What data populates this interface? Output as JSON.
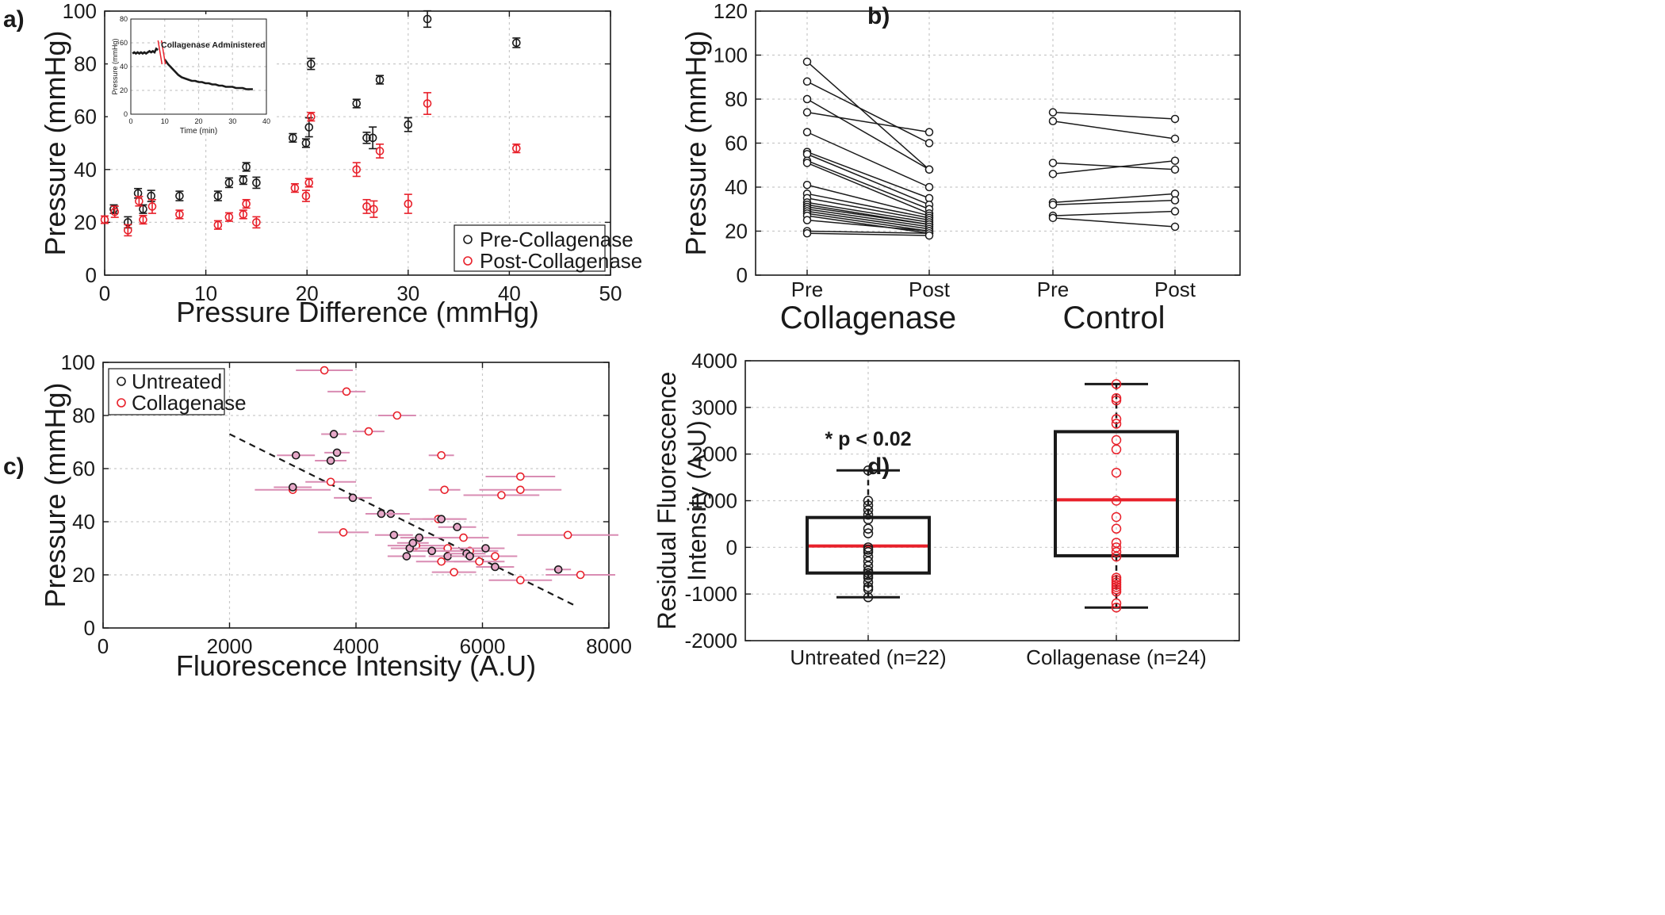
{
  "panels": {
    "a": {
      "label": "a)"
    },
    "b": {
      "label": "b)"
    },
    "c": {
      "label": "c)"
    },
    "d": {
      "label": "d)"
    }
  },
  "colors": {
    "black": "#1a1a1a",
    "red": "#e8202a",
    "pink": "#d98cb3",
    "box_median": "#e8202a"
  },
  "chart_data": [
    {
      "id": "a",
      "type": "scatter",
      "xlabel": "Pressure Difference (mmHg)",
      "ylabel": "Pressure (mmHg)",
      "xlim": [
        0,
        50
      ],
      "ylim": [
        0,
        100
      ],
      "xticks": [
        "0",
        "10",
        "20",
        "30",
        "40",
        "50"
      ],
      "yticks": [
        "0",
        "20",
        "40",
        "60",
        "80",
        "100"
      ],
      "legend": {
        "position": "bottom-right",
        "entries": [
          "Pre-Collagenase",
          "Post-Collagenase"
        ]
      },
      "series": [
        {
          "name": "Pre-Collagenase",
          "color": "#1a1a1a",
          "points": [
            [
              0.9,
              25,
              0.3,
              1
            ],
            [
              2.3,
              20,
              0.4,
              1.5
            ],
            [
              3.3,
              31,
              0.4,
              1.2
            ],
            [
              3.8,
              25,
              0.4,
              1
            ],
            [
              4.6,
              30,
              0.5,
              1.5
            ],
            [
              7.4,
              30,
              0.4,
              1.2
            ],
            [
              11.2,
              30,
              0.4,
              1.2
            ],
            [
              12.3,
              35,
              0.4,
              1.2
            ],
            [
              13.7,
              36,
              0.4,
              1
            ],
            [
              14,
              41,
              0.4,
              1
            ],
            [
              15,
              35,
              0.5,
              1.5
            ],
            [
              18.6,
              52,
              0.4,
              1
            ],
            [
              19.9,
              50,
              0.4,
              1
            ],
            [
              20.2,
              56,
              0.4,
              3
            ],
            [
              20.4,
              80,
              0.4,
              1.5
            ],
            [
              24.9,
              65,
              0.4,
              1
            ],
            [
              25.9,
              52,
              0.5,
              1.5
            ],
            [
              26.5,
              52,
              0.8,
              3.5
            ],
            [
              27.2,
              74,
              0.4,
              1
            ],
            [
              30,
              57,
              0.4,
              2
            ],
            [
              31.9,
              97,
              0.4,
              2.5
            ],
            [
              40.7,
              88,
              0.4,
              1.2
            ]
          ]
        },
        {
          "name": "Post-Collagenase",
          "color": "#e8202a",
          "points": [
            [
              0,
              21,
              0.2,
              0.8
            ],
            [
              1,
              24,
              0.4,
              1.5
            ],
            [
              2.3,
              17,
              0.4,
              1.5
            ],
            [
              3.4,
              28,
              0.4,
              1.2
            ],
            [
              3.8,
              21,
              0.4,
              1
            ],
            [
              4.7,
              26,
              0.4,
              2
            ],
            [
              7.4,
              23,
              0.4,
              1
            ],
            [
              11.2,
              19,
              0.4,
              1
            ],
            [
              12.3,
              22,
              0.4,
              1
            ],
            [
              13.7,
              23,
              0.4,
              1
            ],
            [
              14,
              27,
              0.4,
              1
            ],
            [
              15,
              20,
              0.4,
              1.5
            ],
            [
              18.8,
              33,
              0.4,
              1
            ],
            [
              19.9,
              30,
              0.4,
              1.5
            ],
            [
              20.2,
              35,
              0.4,
              1
            ],
            [
              20.4,
              60,
              0.4,
              1
            ],
            [
              24.9,
              40,
              0.4,
              2
            ],
            [
              25.9,
              26,
              0.5,
              2
            ],
            [
              26.6,
              25,
              0.6,
              2.5
            ],
            [
              27.2,
              47,
              0.4,
              2
            ],
            [
              30,
              27,
              0.5,
              3
            ],
            [
              31.9,
              65,
              0.5,
              3.5
            ],
            [
              40.7,
              48,
              0.4,
              1
            ]
          ]
        }
      ],
      "inset": {
        "title": "Collagenase Administered",
        "xlabel": "Time (min)",
        "ylabel": "Pressure (mmHg)",
        "xlim": [
          0,
          40
        ],
        "ylim": [
          0,
          80
        ],
        "xticks": [
          "0",
          "10",
          "20",
          "30",
          "40"
        ],
        "yticks": [
          "0",
          "20",
          "40",
          "60",
          "80"
        ],
        "curve": [
          [
            0.5,
            51
          ],
          [
            1,
            52
          ],
          [
            1.5,
            51
          ],
          [
            2,
            52
          ],
          [
            2.5,
            51
          ],
          [
            3,
            52
          ],
          [
            3.5,
            51
          ],
          [
            4,
            52
          ],
          [
            4.5,
            51
          ],
          [
            5,
            52
          ],
          [
            5.5,
            53
          ],
          [
            6,
            52
          ],
          [
            6.5,
            53
          ],
          [
            7,
            52
          ],
          [
            7.5,
            55
          ],
          [
            8,
            54
          ],
          [
            10,
            46
          ],
          [
            11,
            42
          ],
          [
            12,
            39
          ],
          [
            13,
            36
          ],
          [
            14,
            33
          ],
          [
            15,
            31
          ],
          [
            16,
            30
          ],
          [
            17,
            29
          ],
          [
            18,
            28
          ],
          [
            19,
            28
          ],
          [
            20,
            27
          ],
          [
            21,
            27
          ],
          [
            22,
            26
          ],
          [
            23,
            26
          ],
          [
            24,
            25
          ],
          [
            25,
            25
          ],
          [
            26,
            24
          ],
          [
            27,
            24
          ],
          [
            28,
            23
          ],
          [
            29,
            23
          ],
          [
            30,
            23
          ],
          [
            31,
            22
          ],
          [
            32,
            22
          ],
          [
            33,
            22
          ],
          [
            34,
            21
          ],
          [
            35,
            21
          ],
          [
            36,
            21
          ]
        ],
        "marker_times": [
          8.5,
          9.5
        ]
      }
    },
    {
      "id": "b",
      "type": "line",
      "ylabel": "Pressure (mmHg)",
      "ylim": [
        0,
        120
      ],
      "yticks": [
        "0",
        "20",
        "40",
        "60",
        "80",
        "100",
        "120"
      ],
      "xtick_labels": [
        "Pre",
        "Post",
        "Pre",
        "Post"
      ],
      "groups": [
        "Collagenase",
        "Control"
      ],
      "collagenase_pairs": [
        [
          97,
          48
        ],
        [
          88,
          60
        ],
        [
          80,
          48
        ],
        [
          74,
          65
        ],
        [
          65,
          40
        ],
        [
          56,
          35
        ],
        [
          55,
          32
        ],
        [
          52,
          30
        ],
        [
          51,
          28
        ],
        [
          41,
          27
        ],
        [
          37,
          26
        ],
        [
          35,
          25
        ],
        [
          33,
          24
        ],
        [
          32,
          23
        ],
        [
          31,
          23
        ],
        [
          30,
          22
        ],
        [
          29,
          21
        ],
        [
          28,
          20
        ],
        [
          27,
          19
        ],
        [
          25,
          20
        ],
        [
          20,
          19
        ],
        [
          19,
          18
        ]
      ],
      "control_pairs": [
        [
          74,
          71
        ],
        [
          70,
          62
        ],
        [
          51,
          48
        ],
        [
          46,
          52
        ],
        [
          33,
          37
        ],
        [
          32,
          34
        ],
        [
          27,
          29
        ],
        [
          26,
          22
        ]
      ]
    },
    {
      "id": "c",
      "type": "scatter",
      "xlabel": "Fluorescence Intensity (A.U)",
      "ylabel": "Pressure (mmHg)",
      "xlim": [
        0,
        8000
      ],
      "ylim": [
        0,
        100
      ],
      "xticks": [
        "0",
        "2000",
        "4000",
        "6000",
        "8000"
      ],
      "yticks": [
        "0",
        "20",
        "40",
        "60",
        "80",
        "100"
      ],
      "legend": {
        "position": "top-left",
        "entries": [
          "Untreated",
          "Collagenase"
        ]
      },
      "fit_line": [
        [
          2000,
          73
        ],
        [
          7500,
          8
        ]
      ],
      "series": [
        {
          "name": "Untreated",
          "color": "#1a1a1a",
          "points": [
            [
              3000,
              53,
              300,
              1
            ],
            [
              3050,
              65,
              300,
              1
            ],
            [
              3650,
              73,
              200,
              1
            ],
            [
              3600,
              63,
              250,
              1
            ],
            [
              3700,
              66,
              200,
              1
            ],
            [
              3950,
              49,
              300,
              1
            ],
            [
              4550,
              43,
              300,
              1
            ],
            [
              4400,
              43,
              250,
              1
            ],
            [
              4600,
              35,
              300,
              1
            ],
            [
              4800,
              27,
              300,
              1
            ],
            [
              4850,
              30,
              300,
              1
            ],
            [
              4900,
              32,
              250,
              1
            ],
            [
              5000,
              34,
              300,
              1
            ],
            [
              5200,
              29,
              300,
              1
            ],
            [
              5350,
              41,
              300,
              1
            ],
            [
              5450,
              27,
              300,
              1
            ],
            [
              5600,
              38,
              300,
              1
            ],
            [
              5750,
              28,
              300,
              1
            ],
            [
              5800,
              27,
              300,
              1
            ],
            [
              6050,
              30,
              300,
              1
            ],
            [
              6200,
              23,
              300,
              1
            ],
            [
              7200,
              22,
              200,
              1
            ]
          ]
        },
        {
          "name": "Collagenase",
          "color": "#e8202a",
          "points": [
            [
              3500,
              97,
              450,
              1
            ],
            [
              3850,
              89,
              300,
              1
            ],
            [
              4650,
              80,
              300,
              1
            ],
            [
              4200,
              74,
              250,
              1
            ],
            [
              5350,
              65,
              200,
              1
            ],
            [
              6600,
              57,
              550,
              1
            ],
            [
              5400,
              52,
              250,
              1
            ],
            [
              6600,
              52,
              650,
              1
            ],
            [
              6300,
              50,
              600,
              1
            ],
            [
              3000,
              52,
              600,
              1
            ],
            [
              3600,
              55,
              400,
              1
            ],
            [
              3800,
              36,
              400,
              1
            ],
            [
              5300,
              41,
              450,
              1
            ],
            [
              5350,
              25,
              400,
              1
            ],
            [
              5450,
              30,
              450,
              1
            ],
            [
              5550,
              21,
              350,
              1
            ],
            [
              5700,
              34,
              400,
              1
            ],
            [
              5800,
              29,
              450,
              1
            ],
            [
              5950,
              25,
              400,
              1
            ],
            [
              6200,
              27,
              350,
              1
            ],
            [
              6600,
              18,
              500,
              1
            ],
            [
              7350,
              35,
              800,
              1
            ],
            [
              7550,
              20,
              550,
              1
            ],
            [
              4950,
              31,
              450,
              1
            ]
          ]
        }
      ]
    },
    {
      "id": "d",
      "type": "box",
      "ylabel": "Residual Fluorescence Intensity (A.U)",
      "ylim": [
        -2000,
        4000
      ],
      "yticks": [
        "-2000",
        "-1000",
        "0",
        "1000",
        "2000",
        "3000",
        "4000"
      ],
      "categories": [
        "Untreated (n=22)",
        "Collagenase (n=24)"
      ],
      "annotation": "* p < 0.02",
      "boxes": [
        {
          "q1": -550,
          "median": 30,
          "q3": 640,
          "whisker_low": -1070,
          "whisker_high": 1650,
          "points": [
            1650,
            1000,
            900,
            800,
            700,
            600,
            400,
            300,
            0,
            -50,
            -100,
            -200,
            -300,
            -400,
            -500,
            -550,
            -600,
            -650,
            -750,
            -850,
            -900,
            -1070
          ]
        },
        {
          "q1": -180,
          "median": 1020,
          "q3": 2480,
          "whisker_low": -1290,
          "whisker_high": 3500,
          "points": [
            3500,
            3200,
            3150,
            2750,
            2650,
            2300,
            2100,
            1600,
            1000,
            650,
            400,
            100,
            0,
            -100,
            -200,
            -650,
            -700,
            -750,
            -800,
            -900,
            -950,
            -1200,
            -1290,
            -850
          ]
        }
      ]
    }
  ]
}
